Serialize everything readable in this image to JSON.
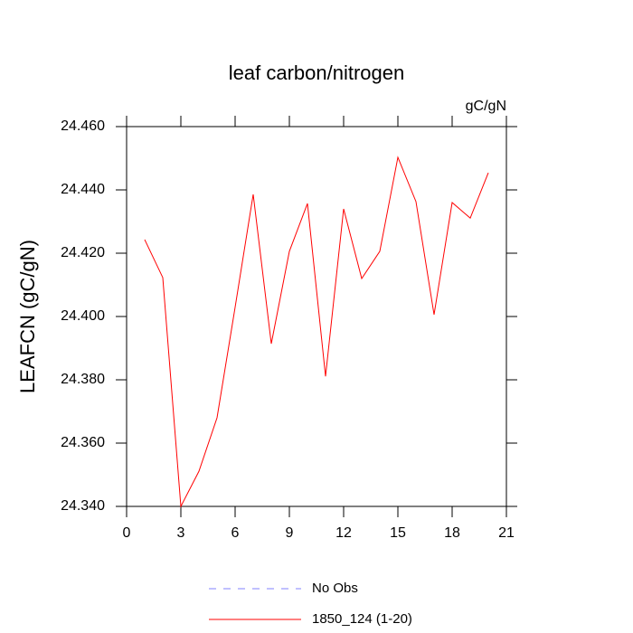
{
  "chart_data": {
    "type": "line",
    "title": "leaf carbon/nitrogen",
    "units_label": "gC/gN",
    "ylabel": "LEAFCN  (gC/gN)",
    "x": [
      1,
      2,
      3,
      4,
      5,
      6,
      7,
      8,
      9,
      10,
      11,
      12,
      13,
      14,
      15,
      16,
      17,
      18,
      19,
      20
    ],
    "series": [
      {
        "name": "No Obs",
        "color": "#8080ff",
        "dashed": true,
        "values": [
          null,
          null,
          null,
          null,
          null,
          null,
          null,
          null,
          null,
          null,
          null,
          null,
          null,
          null,
          null,
          null,
          null,
          null,
          null,
          null
        ]
      },
      {
        "name": "1850_124 (1-20)",
        "color": "#ff0000",
        "dashed": false,
        "values": [
          24.4243,
          24.4123,
          24.34,
          24.3511,
          24.368,
          24.4029,
          24.4386,
          24.3914,
          24.4206,
          24.4357,
          24.3811,
          24.434,
          24.412,
          24.4206,
          24.4503,
          24.4363,
          24.4006,
          24.436,
          24.4311,
          24.4454
        ]
      }
    ],
    "xlim": [
      0,
      21
    ],
    "xticks": [
      0,
      3,
      6,
      9,
      12,
      15,
      18,
      21
    ],
    "ylim": [
      24.34,
      24.46
    ],
    "yticks": [
      {
        "value": 24.34,
        "label": "24.340"
      },
      {
        "value": 24.36,
        "label": "24.360"
      },
      {
        "value": 24.38,
        "label": "24.380"
      },
      {
        "value": 24.4,
        "label": "24.400"
      },
      {
        "value": 24.42,
        "label": "24.420"
      },
      {
        "value": 24.44,
        "label": "24.440"
      },
      {
        "value": 24.46,
        "label": "24.460"
      }
    ]
  }
}
